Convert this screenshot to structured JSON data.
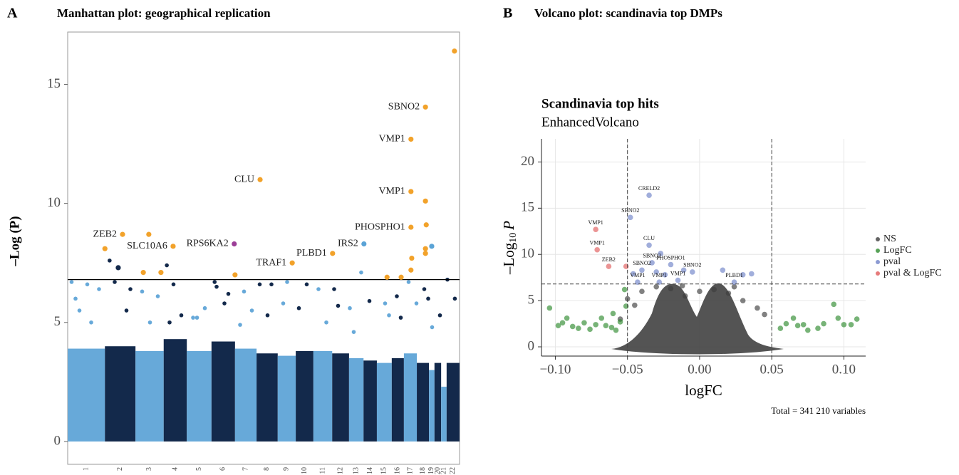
{
  "chart_data": [
    {
      "type": "manhattan",
      "panel": "A",
      "title": "Manhattan plot: geographical replication",
      "ylabel": "–Log (P)",
      "xlim": [
        0,
        100
      ],
      "ylim": [
        -0.96,
        17.2
      ],
      "yticks": [
        0,
        5,
        10,
        15
      ],
      "chromosomes": [
        "1",
        "2",
        "3",
        "4",
        "5",
        "6",
        "7",
        "8",
        "9",
        "10",
        "11",
        "12",
        "13",
        "14",
        "15",
        "16",
        "17",
        "18",
        "19",
        "20",
        "21",
        "22"
      ],
      "bounds": [
        0,
        9.5,
        17.3,
        24.5,
        30.4,
        36.7,
        42.7,
        48.2,
        53.6,
        58.2,
        62.7,
        67.5,
        71.8,
        75.5,
        78.9,
        82.7,
        85.8,
        89.1,
        92.2,
        93.6,
        95.3,
        96.7,
        100
      ],
      "bulk": [
        3.9,
        4.0,
        3.8,
        4.3,
        3.8,
        4.2,
        3.9,
        3.7,
        3.6,
        3.8,
        3.8,
        3.7,
        3.5,
        3.4,
        3.3,
        3.5,
        3.7,
        3.3,
        3.0,
        3.3,
        2.3,
        3.3
      ],
      "colors": [
        "#67a9d9",
        "#13294b"
      ],
      "threshold": 6.8,
      "background": {
        "x": [
          1,
          2,
          3,
          5,
          6,
          8,
          10.7,
          12,
          15,
          16,
          19,
          21,
          23,
          25.3,
          26,
          27,
          29,
          32,
          33,
          35,
          37.5,
          38,
          40,
          41,
          44,
          45,
          47,
          49,
          51,
          52,
          55,
          56,
          59,
          61,
          64,
          66,
          68,
          69,
          72,
          73,
          74.9,
          77,
          81,
          82,
          84,
          85,
          87,
          89,
          91,
          92,
          93,
          95,
          96.9,
          98.8
        ],
        "values": [
          6.7,
          6.0,
          5.5,
          6.6,
          5.0,
          6.4,
          7.6,
          6.7,
          5.5,
          6.4,
          6.3,
          5.0,
          6.1,
          7.4,
          5.0,
          6.6,
          5.3,
          5.2,
          5.2,
          5.6,
          6.7,
          6.5,
          5.8,
          6.2,
          4.9,
          6.3,
          5.5,
          6.6,
          5.3,
          6.6,
          5.8,
          6.7,
          5.6,
          6.6,
          6.4,
          5.0,
          6.4,
          5.7,
          5.6,
          4.6,
          7.1,
          5.9,
          5.8,
          5.3,
          6.1,
          5.2,
          6.7,
          5.8,
          6.4,
          6.0,
          4.8,
          5.3,
          6.8,
          6.0
        ]
      },
      "hits": {
        "x": [
          98.7,
          91.3,
          87.6,
          49.1,
          87.6,
          91.3,
          91.5,
          87.6,
          14.0,
          20.7,
          26.9,
          42.5,
          75.6,
          67.6,
          57.3,
          9.5,
          12.9,
          19.3,
          23.8,
          87.8,
          91.3,
          91.3,
          87.6,
          42.7,
          81.5,
          85.1,
          92.9
        ],
        "values": [
          16.4,
          14.05,
          12.7,
          11.0,
          10.5,
          10.1,
          9.1,
          9.0,
          8.7,
          8.7,
          8.2,
          8.3,
          8.3,
          7.9,
          7.5,
          8.1,
          7.3,
          7.1,
          7.1,
          7.7,
          8.1,
          7.9,
          7.2,
          7.0,
          6.9,
          6.9,
          8.2
        ],
        "labels": [
          null,
          "SBNO2",
          "VMP1",
          "CLU",
          "VMP1",
          null,
          null,
          "PHOSPHO1",
          "ZEB2",
          null,
          "SLC10A6",
          "RPS6KA2",
          "IRS2",
          "PLBD1",
          "TRAF1",
          null,
          null,
          null,
          null,
          null,
          null,
          null,
          null,
          null,
          null,
          null,
          null
        ],
        "colors": [
          "#f2a22a",
          "#f2a22a",
          "#f2a22a",
          "#f2a22a",
          "#f2a22a",
          "#f2a22a",
          "#f2a22a",
          "#f2a22a",
          "#f2a22a",
          "#f2a22a",
          "#f2a22a",
          "#9b3d97",
          "#5aa3d6",
          "#f2a22a",
          "#f2a22a",
          "#f2a22a",
          "#13294b",
          "#f2a22a",
          "#f2a22a",
          "#f2a22a",
          "#f2a22a",
          "#f2a22a",
          "#f2a22a",
          "#f2a22a",
          "#f2a22a",
          "#f2a22a",
          "#5aa3d6"
        ]
      }
    },
    {
      "type": "volcano",
      "panel": "B",
      "heading": "Volcano plot: scandinavia top DMPs",
      "title": "Scandinavia top hits",
      "subtitle": "EnhancedVolcano",
      "xlabel": "logFC",
      "ylabel": {
        "text": "–Log",
        "sub": "10",
        "var": "P"
      },
      "caption": "Total = 341 210 variables",
      "xlim": [
        -0.1096,
        0.1151
      ],
      "ylim": [
        -1,
        22.5
      ],
      "xticks": [
        {
          "value": -0.1,
          "label": "−0.10"
        },
        {
          "value": -0.05,
          "label": "−0.05"
        },
        {
          "value": 0,
          "label": "0.00"
        },
        0.05,
        {
          "value": 0.1,
          "label": "0.10"
        }
      ],
      "yticks": [
        0,
        5,
        10,
        15,
        20
      ],
      "grid": true,
      "fc_cutoff": [
        -0.05,
        0.05
      ],
      "p_cutoff": 6.8,
      "series": [
        {
          "name": "NS",
          "color": "#3d3d3d",
          "x": [
            -0.05,
            -0.045,
            -0.04,
            -0.03,
            -0.02,
            -0.01,
            0.0,
            0.01,
            0.02,
            0.03,
            0.04,
            0.045,
            -0.055,
            -0.012,
            0.024
          ],
          "values": [
            5.2,
            4.5,
            6.0,
            6.5,
            6.3,
            5.5,
            6.0,
            6.2,
            5.8,
            5.0,
            4.2,
            3.5,
            3.0,
            6.6,
            6.5
          ]
        },
        {
          "name": "LogFC",
          "color": "#2e8b2e",
          "x": [
            -0.104,
            -0.098,
            -0.095,
            -0.092,
            -0.088,
            -0.084,
            -0.08,
            -0.076,
            -0.072,
            -0.068,
            -0.065,
            -0.061,
            -0.058,
            -0.055,
            -0.06,
            -0.052,
            -0.051,
            0.056,
            0.06,
            0.065,
            0.068,
            0.072,
            0.075,
            0.082,
            0.086,
            0.093,
            0.096,
            0.1,
            0.105,
            0.109
          ],
          "values": [
            4.2,
            2.3,
            2.6,
            3.1,
            2.2,
            2.0,
            2.6,
            1.9,
            2.4,
            3.1,
            2.3,
            2.1,
            1.8,
            2.7,
            3.6,
            6.2,
            4.4,
            2.0,
            2.5,
            3.1,
            2.3,
            2.4,
            1.8,
            2.0,
            2.5,
            4.6,
            3.1,
            2.4,
            2.4,
            3.0
          ]
        },
        {
          "name": "pval",
          "color": "#6f82c8",
          "x": [
            -0.035,
            -0.048,
            -0.035,
            -0.027,
            -0.033,
            -0.02,
            -0.04,
            -0.03,
            -0.024,
            -0.046,
            -0.011,
            -0.005,
            0.016,
            0.03,
            0.036,
            0.024,
            -0.043,
            -0.028,
            -0.015
          ],
          "values": [
            16.4,
            14.0,
            11.0,
            10.1,
            9.1,
            8.9,
            8.3,
            8.1,
            7.8,
            7.9,
            8.3,
            8.1,
            8.3,
            7.8,
            7.9,
            7.0,
            7.0,
            7.0,
            7.2
          ],
          "labels": [
            "CRELD2",
            "SBNO2",
            "CLU",
            null,
            "SBNO2",
            "PHOSPHO1",
            "SBNO2",
            null,
            null,
            null,
            null,
            "SBNO2",
            null,
            null,
            null,
            "PLBD1",
            "VMP1",
            "VMP1",
            "VMP1"
          ]
        },
        {
          "name": "pval & LogFC",
          "color": "#e05a5a",
          "x": [
            -0.072,
            -0.071,
            -0.063,
            -0.051
          ],
          "values": [
            12.7,
            10.5,
            8.7,
            8.7
          ],
          "labels": [
            "VMP1",
            "VMP1",
            "ZEB2",
            null
          ]
        }
      ]
    }
  ]
}
